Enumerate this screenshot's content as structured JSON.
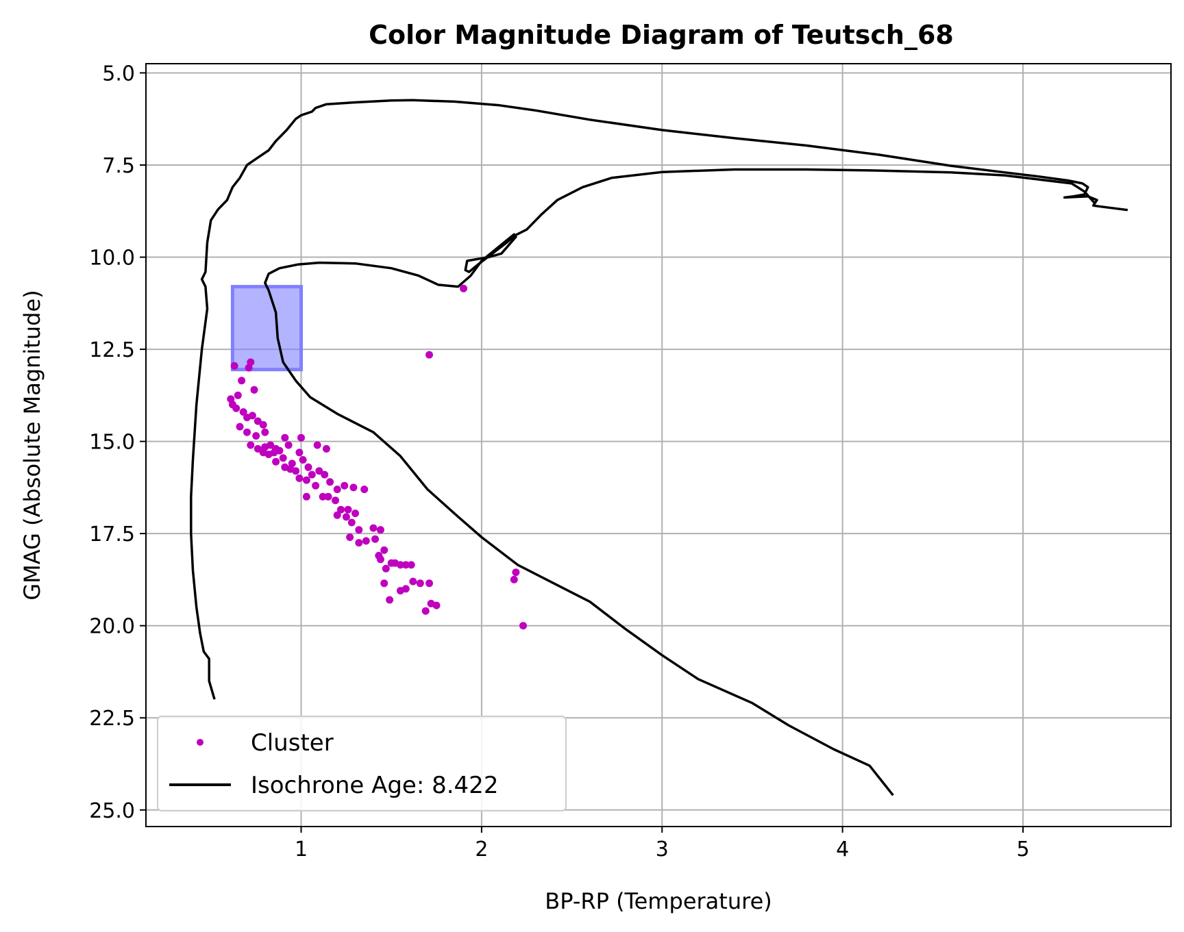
{
  "chart_data": {
    "type": "scatter",
    "title": "Color Magnitude Diagram of Teutsch_68",
    "xlabel": "BP-RP (Temperature)",
    "ylabel": "GMAG (Absolute Magnitude)",
    "xlim": [
      0.14,
      5.82
    ],
    "ylim": [
      25.45,
      4.75
    ],
    "y_inverted": true,
    "grid": true,
    "xticks": [
      1,
      2,
      3,
      4,
      5
    ],
    "yticks": [
      5.0,
      7.5,
      10.0,
      12.5,
      15.0,
      17.5,
      20.0,
      22.5,
      25.0
    ],
    "xtick_labels": [
      "1",
      "2",
      "3",
      "4",
      "5"
    ],
    "ytick_labels": [
      "5.0",
      "7.5",
      "10.0",
      "12.5",
      "15.0",
      "17.5",
      "20.0",
      "22.5",
      "25.0"
    ],
    "legend_position": "lower-left",
    "highlight_box": {
      "x": [
        0.62,
        1.0
      ],
      "y": [
        10.8,
        13.05
      ],
      "color": "#8080ff"
    },
    "series": [
      {
        "name": "Cluster",
        "kind": "scatter",
        "color": "#bf00bf",
        "points": [
          [
            0.63,
            12.95
          ],
          [
            0.72,
            12.85
          ],
          [
            0.71,
            13.0
          ],
          [
            0.67,
            13.35
          ],
          [
            0.74,
            13.6
          ],
          [
            0.61,
            13.85
          ],
          [
            0.65,
            13.75
          ],
          [
            0.62,
            14.0
          ],
          [
            0.64,
            14.1
          ],
          [
            0.68,
            14.2
          ],
          [
            0.7,
            14.35
          ],
          [
            0.73,
            14.3
          ],
          [
            0.66,
            14.6
          ],
          [
            0.7,
            14.75
          ],
          [
            0.76,
            14.45
          ],
          [
            0.79,
            14.55
          ],
          [
            0.8,
            14.75
          ],
          [
            0.75,
            14.85
          ],
          [
            0.72,
            15.1
          ],
          [
            0.76,
            15.2
          ],
          [
            0.8,
            15.15
          ],
          [
            0.83,
            15.1
          ],
          [
            0.86,
            15.2
          ],
          [
            0.79,
            15.3
          ],
          [
            0.82,
            15.35
          ],
          [
            0.85,
            15.3
          ],
          [
            0.88,
            15.25
          ],
          [
            0.91,
            14.9
          ],
          [
            0.93,
            15.1
          ],
          [
            0.9,
            15.45
          ],
          [
            0.86,
            15.55
          ],
          [
            0.95,
            15.6
          ],
          [
            0.91,
            15.7
          ],
          [
            0.94,
            15.75
          ],
          [
            0.97,
            15.8
          ],
          [
            0.99,
            15.3
          ],
          [
            1.0,
            14.9
          ],
          [
            1.01,
            15.5
          ],
          [
            1.04,
            15.7
          ],
          [
            0.99,
            16.0
          ],
          [
            1.03,
            16.05
          ],
          [
            1.06,
            15.9
          ],
          [
            1.09,
            15.1
          ],
          [
            1.14,
            15.2
          ],
          [
            1.1,
            15.8
          ],
          [
            1.13,
            15.9
          ],
          [
            1.08,
            16.2
          ],
          [
            1.16,
            16.1
          ],
          [
            1.12,
            16.5
          ],
          [
            1.03,
            16.5
          ],
          [
            1.15,
            16.5
          ],
          [
            1.2,
            16.3
          ],
          [
            1.24,
            16.2
          ],
          [
            1.19,
            16.6
          ],
          [
            1.22,
            16.85
          ],
          [
            1.26,
            16.85
          ],
          [
            1.2,
            17.0
          ],
          [
            1.25,
            17.05
          ],
          [
            1.28,
            17.2
          ],
          [
            1.3,
            16.95
          ],
          [
            1.29,
            16.25
          ],
          [
            1.35,
            16.3
          ],
          [
            1.32,
            17.4
          ],
          [
            1.27,
            17.6
          ],
          [
            1.32,
            17.75
          ],
          [
            1.36,
            17.7
          ],
          [
            1.4,
            17.35
          ],
          [
            1.44,
            17.4
          ],
          [
            1.46,
            17.95
          ],
          [
            1.41,
            17.65
          ],
          [
            1.43,
            18.1
          ],
          [
            1.44,
            18.2
          ],
          [
            1.47,
            18.45
          ],
          [
            1.5,
            18.3
          ],
          [
            1.52,
            18.3
          ],
          [
            1.55,
            18.35
          ],
          [
            1.58,
            18.35
          ],
          [
            1.61,
            18.35
          ],
          [
            1.62,
            18.8
          ],
          [
            1.58,
            19.0
          ],
          [
            1.55,
            19.05
          ],
          [
            1.46,
            18.85
          ],
          [
            1.66,
            18.85
          ],
          [
            1.71,
            18.85
          ],
          [
            1.72,
            19.4
          ],
          [
            1.75,
            19.45
          ],
          [
            1.69,
            19.6
          ],
          [
            1.49,
            19.3
          ],
          [
            1.71,
            12.65
          ],
          [
            1.9,
            10.85
          ],
          [
            2.19,
            18.55
          ],
          [
            2.18,
            18.75
          ],
          [
            2.23,
            20.0
          ]
        ]
      },
      {
        "name": "Isochrone Age: 8.422",
        "kind": "line",
        "color": "#000000",
        "points": [
          [
            0.52,
            22.0
          ],
          [
            0.49,
            21.5
          ],
          [
            0.49,
            20.9
          ],
          [
            0.46,
            20.7
          ],
          [
            0.44,
            20.2
          ],
          [
            0.42,
            19.5
          ],
          [
            0.4,
            18.5
          ],
          [
            0.39,
            17.5
          ],
          [
            0.39,
            16.5
          ],
          [
            0.4,
            15.5
          ],
          [
            0.42,
            14.0
          ],
          [
            0.45,
            12.5
          ],
          [
            0.48,
            11.4
          ],
          [
            0.47,
            10.8
          ],
          [
            0.45,
            10.6
          ],
          [
            0.47,
            10.4
          ],
          [
            0.48,
            9.6
          ],
          [
            0.5,
            9.0
          ],
          [
            0.54,
            8.7
          ],
          [
            0.59,
            8.45
          ],
          [
            0.62,
            8.1
          ],
          [
            0.66,
            7.85
          ],
          [
            0.7,
            7.5
          ],
          [
            0.76,
            7.3
          ],
          [
            0.82,
            7.1
          ],
          [
            0.86,
            6.85
          ],
          [
            0.92,
            6.55
          ],
          [
            0.97,
            6.25
          ],
          [
            1.0,
            6.15
          ],
          [
            1.06,
            6.05
          ],
          [
            1.08,
            5.95
          ],
          [
            1.14,
            5.85
          ],
          [
            1.3,
            5.8
          ],
          [
            1.5,
            5.75
          ],
          [
            1.62,
            5.74
          ],
          [
            1.85,
            5.78
          ],
          [
            2.1,
            5.88
          ],
          [
            2.3,
            6.02
          ],
          [
            2.6,
            6.27
          ],
          [
            3.0,
            6.55
          ],
          [
            3.4,
            6.77
          ],
          [
            3.8,
            6.97
          ],
          [
            4.2,
            7.22
          ],
          [
            4.6,
            7.52
          ],
          [
            4.9,
            7.7
          ],
          [
            5.1,
            7.82
          ],
          [
            5.25,
            7.92
          ],
          [
            5.33,
            8.0
          ],
          [
            5.36,
            8.1
          ],
          [
            5.34,
            8.3
          ],
          [
            5.28,
            8.35
          ],
          [
            5.23,
            8.38
          ],
          [
            5.36,
            8.35
          ],
          [
            5.41,
            8.45
          ],
          [
            5.39,
            8.6
          ],
          [
            5.42,
            8.62
          ],
          [
            5.58,
            8.72
          ]
        ]
      },
      {
        "name": "",
        "kind": "line",
        "color": "#000000",
        "points": [
          [
            5.4,
            8.55
          ],
          [
            5.34,
            8.22
          ],
          [
            5.27,
            8.0
          ],
          [
            5.1,
            7.9
          ],
          [
            4.9,
            7.78
          ],
          [
            4.6,
            7.7
          ],
          [
            4.2,
            7.65
          ],
          [
            3.8,
            7.62
          ],
          [
            3.4,
            7.62
          ],
          [
            3.0,
            7.69
          ],
          [
            2.72,
            7.85
          ],
          [
            2.56,
            8.1
          ],
          [
            2.42,
            8.45
          ],
          [
            2.33,
            8.85
          ],
          [
            2.25,
            9.25
          ],
          [
            2.19,
            9.4
          ],
          [
            2.14,
            9.6
          ],
          [
            2.06,
            9.9
          ],
          [
            1.98,
            10.2
          ],
          [
            1.93,
            10.4
          ],
          [
            1.91,
            10.35
          ],
          [
            1.92,
            10.1
          ],
          [
            1.98,
            10.05
          ],
          [
            2.04,
            10.0
          ],
          [
            2.11,
            9.9
          ],
          [
            2.19,
            9.45
          ],
          [
            2.18,
            9.38
          ],
          [
            2.1,
            9.7
          ],
          [
            2.0,
            10.1
          ],
          [
            1.94,
            10.5
          ],
          [
            1.87,
            10.8
          ],
          [
            1.76,
            10.75
          ],
          [
            1.65,
            10.5
          ],
          [
            1.5,
            10.3
          ],
          [
            1.3,
            10.17
          ],
          [
            1.1,
            10.15
          ],
          [
            0.98,
            10.2
          ],
          [
            0.88,
            10.3
          ],
          [
            0.82,
            10.45
          ],
          [
            0.8,
            10.7
          ],
          [
            0.82,
            10.9
          ],
          [
            0.86,
            11.5
          ],
          [
            0.87,
            12.2
          ],
          [
            0.9,
            12.85
          ],
          [
            0.97,
            13.35
          ],
          [
            1.05,
            13.8
          ],
          [
            1.2,
            14.25
          ],
          [
            1.4,
            14.75
          ],
          [
            1.55,
            15.4
          ],
          [
            1.7,
            16.3
          ],
          [
            1.86,
            17.0
          ],
          [
            2.0,
            17.6
          ],
          [
            2.2,
            18.35
          ],
          [
            2.4,
            18.85
          ],
          [
            2.6,
            19.35
          ],
          [
            2.8,
            20.1
          ],
          [
            3.0,
            20.8
          ],
          [
            3.2,
            21.45
          ],
          [
            3.5,
            22.1
          ],
          [
            3.7,
            22.7
          ],
          [
            3.95,
            23.35
          ],
          [
            4.15,
            23.8
          ],
          [
            4.28,
            24.6
          ]
        ]
      }
    ]
  }
}
